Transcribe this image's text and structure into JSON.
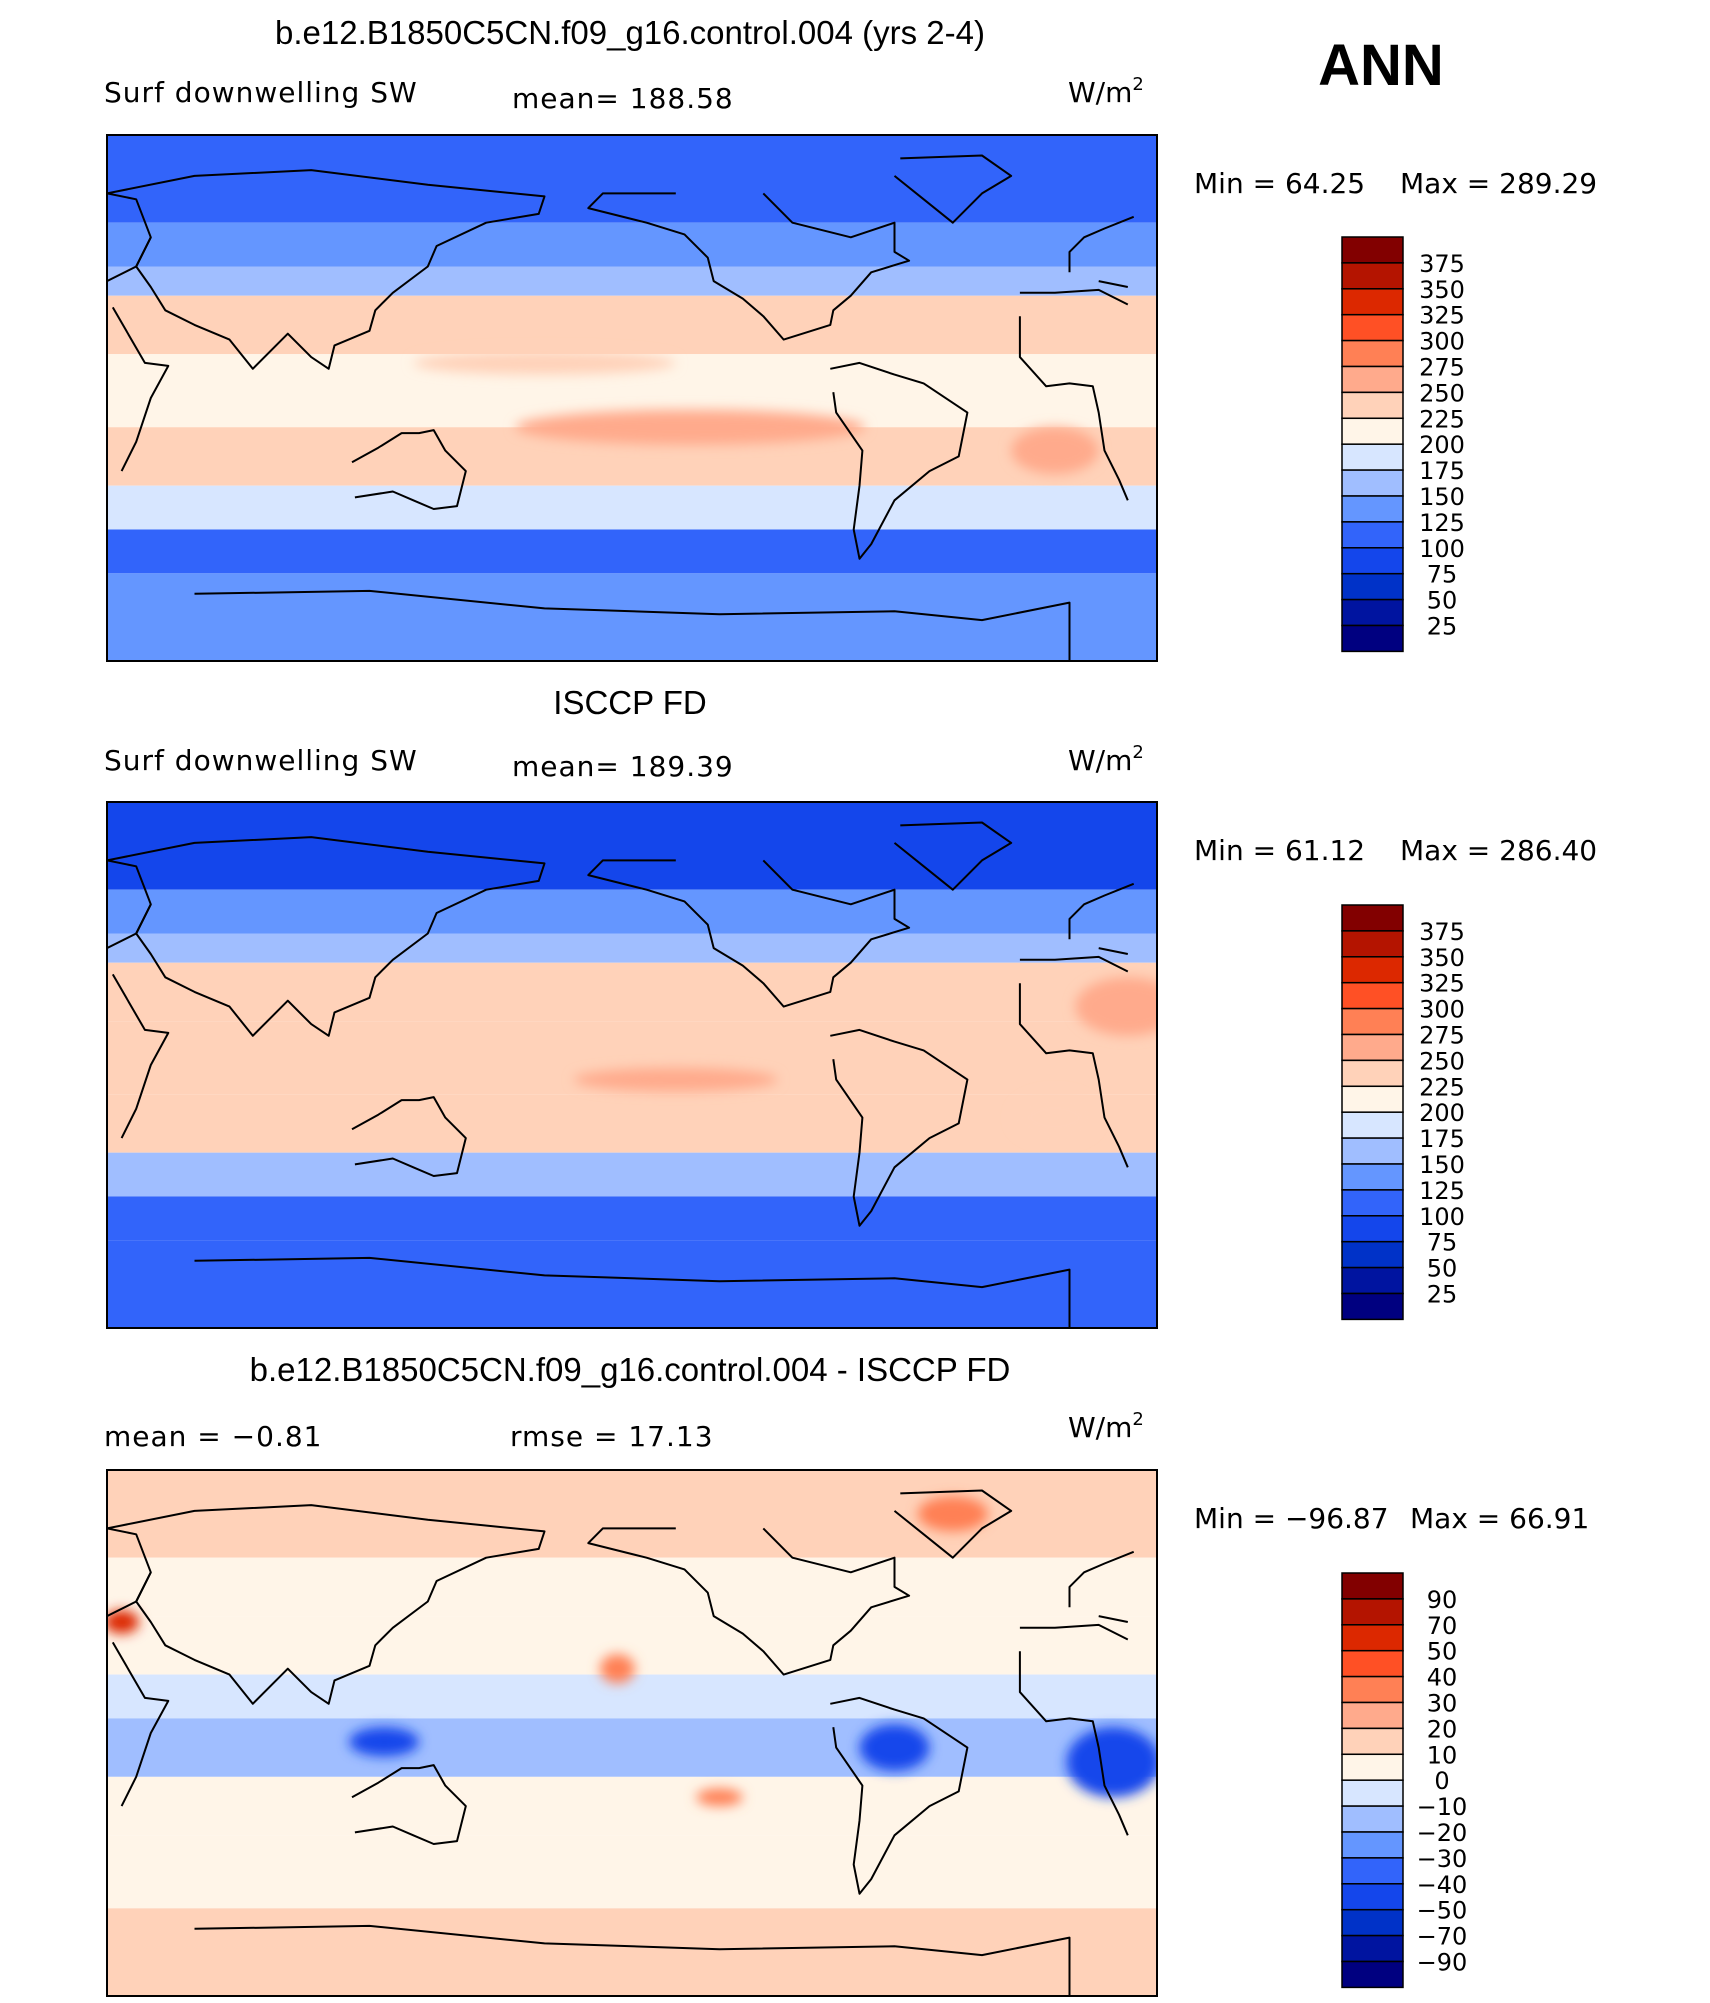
{
  "season": "ANN",
  "colors": {
    "levels_absolute": [
      "#000080",
      "#0014a0",
      "#0032c8",
      "#1446eb",
      "#3264fa",
      "#6496ff",
      "#a0beff",
      "#d7e6ff",
      "#fff5e8",
      "#ffd2b9",
      "#ffaa8c",
      "#ff8055",
      "#ff5025",
      "#dc2800",
      "#b41400",
      "#820000"
    ],
    "levels_difference": [
      "#000080",
      "#0014a0",
      "#0032c8",
      "#1446eb",
      "#3264fa",
      "#6496ff",
      "#a0beff",
      "#d7e6ff",
      "#fff5e8",
      "#ffd2b9",
      "#ffaa8c",
      "#ff8055",
      "#ff5025",
      "#dc2800",
      "#b41400",
      "#820000"
    ]
  },
  "panels": [
    {
      "title": "b.e12.B1850C5CN.f09_g16.control.004 (yrs 2-4)",
      "left_label": "Surf  downwelling  SW",
      "mean_text": "mean=  188.58",
      "units": "W/m",
      "units_sup": "2",
      "min_text": "Min  =     64.25",
      "max_text": "Max  =  289.29"
    },
    {
      "title": "ISCCP FD",
      "left_label": "Surf  downwelling  SW",
      "mean_text": "mean=  189.39",
      "units": "W/m",
      "units_sup": "2",
      "min_text": "Min  =     61.12",
      "max_text": "Max  =  286.40"
    },
    {
      "title": "b.e12.B1850C5CN.f09_g16.control.004 - ISCCP FD",
      "left_label": "mean  =    −0.81",
      "mean_text": "rmse  =    17.13",
      "units": "W/m",
      "units_sup": "2",
      "min_text": "Min  =  −96.87",
      "max_text": "Max  =    66.91"
    }
  ],
  "chart_data": [
    {
      "type": "heatmap",
      "title": "b.e12.B1850C5CN.f09_g16.control.004 (yrs 2-4)",
      "variable": "Surf  downwelling  SW",
      "units": "W/m2",
      "mean": 188.58,
      "min": 64.25,
      "max": 289.29,
      "projection": "cylindrical equidistant, centered on dateline",
      "zonal_bands": [
        {
          "lat": [
            60,
            90
          ],
          "value": 100
        },
        {
          "lat": [
            45,
            60
          ],
          "value": 125
        },
        {
          "lat": [
            35,
            45
          ],
          "value": 165
        },
        {
          "lat": [
            15,
            35
          ],
          "value": 230
        },
        {
          "lat": [
            -10,
            15
          ],
          "value": 215
        },
        {
          "lat": [
            -30,
            -10
          ],
          "value": 240
        },
        {
          "lat": [
            -45,
            -30
          ],
          "value": 175
        },
        {
          "lat": [
            -60,
            -45
          ],
          "value": 105
        },
        {
          "lat": [
            -90,
            -60
          ],
          "value": 125
        }
      ],
      "colorbar": {
        "levels": [
          25,
          50,
          75,
          100,
          125,
          150,
          175,
          200,
          225,
          250,
          275,
          300,
          325,
          350,
          375
        ]
      }
    },
    {
      "type": "heatmap",
      "title": "ISCCP FD",
      "variable": "Surf  downwelling  SW",
      "units": "W/m2",
      "mean": 189.39,
      "min": 61.12,
      "max": 286.4,
      "projection": "cylindrical equidistant, centered on dateline",
      "zonal_bands": [
        {
          "lat": [
            60,
            90
          ],
          "value": 90
        },
        {
          "lat": [
            45,
            60
          ],
          "value": 130
        },
        {
          "lat": [
            35,
            45
          ],
          "value": 170
        },
        {
          "lat": [
            15,
            35
          ],
          "value": 235
        },
        {
          "lat": [
            -10,
            15
          ],
          "value": 225
        },
        {
          "lat": [
            -30,
            -10
          ],
          "value": 240
        },
        {
          "lat": [
            -45,
            -30
          ],
          "value": 165
        },
        {
          "lat": [
            -60,
            -45
          ],
          "value": 100
        },
        {
          "lat": [
            -90,
            -60
          ],
          "value": 115
        }
      ],
      "colorbar": {
        "levels": [
          25,
          50,
          75,
          100,
          125,
          150,
          175,
          200,
          225,
          250,
          275,
          300,
          325,
          350,
          375
        ]
      }
    },
    {
      "type": "heatmap",
      "title": "b.e12.B1850C5CN.f09_g16.control.004 - ISCCP FD",
      "units": "W/m2",
      "mean": -0.81,
      "rmse": 17.13,
      "min": -96.87,
      "max": 66.91,
      "projection": "cylindrical equidistant, centered on dateline",
      "zonal_bands": [
        {
          "lat": [
            60,
            90
          ],
          "value": 12
        },
        {
          "lat": [
            40,
            60
          ],
          "value": 8
        },
        {
          "lat": [
            20,
            40
          ],
          "value": 3
        },
        {
          "lat": [
            5,
            20
          ],
          "value": -8
        },
        {
          "lat": [
            -15,
            5
          ],
          "value": -15
        },
        {
          "lat": [
            -35,
            -15
          ],
          "value": 6
        },
        {
          "lat": [
            -60,
            -35
          ],
          "value": 4
        },
        {
          "lat": [
            -90,
            -60
          ],
          "value": 10
        }
      ],
      "colorbar": {
        "levels": [
          -90,
          -70,
          -50,
          -40,
          -30,
          -20,
          -10,
          0,
          10,
          20,
          30,
          40,
          50,
          70,
          90
        ]
      }
    }
  ]
}
